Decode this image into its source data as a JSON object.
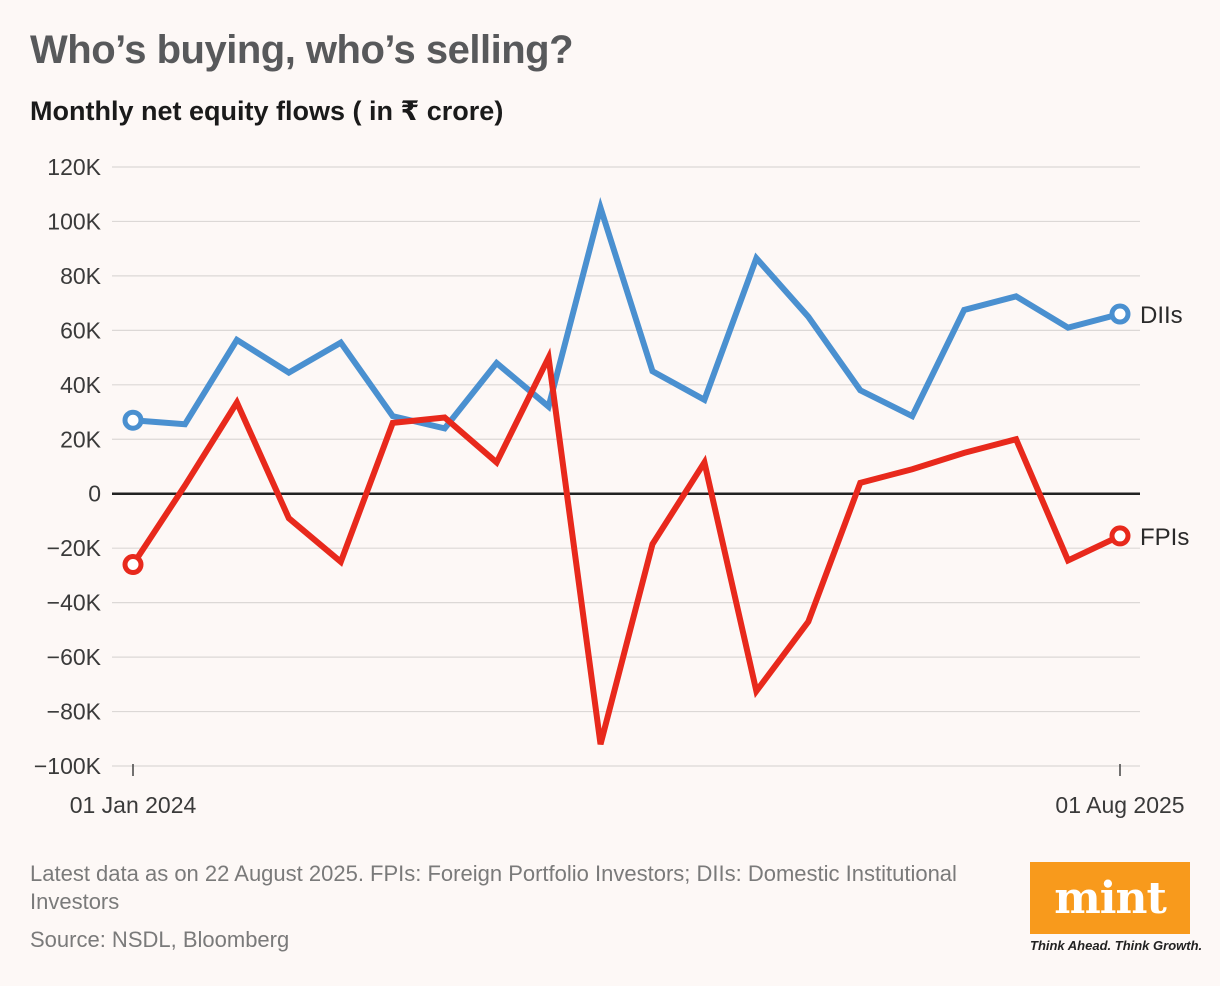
{
  "chart_data": {
    "type": "line",
    "title": "Who’s buying, who’s selling?",
    "subtitle": "Monthly net equity flows ( in ₹ crore)",
    "ylim": [
      -100000,
      120000
    ],
    "y_ticks": [
      120000,
      100000,
      80000,
      60000,
      40000,
      20000,
      0,
      -20000,
      -40000,
      -60000,
      -80000,
      -100000
    ],
    "y_tick_labels": [
      "120K",
      "100K",
      "80K",
      "60K",
      "40K",
      "20K",
      "0",
      "−20K",
      "−40K",
      "−60K",
      "−80K",
      "−100K"
    ],
    "x_tick_labels": [
      "01 Jan 2024",
      "01 Aug 2025"
    ],
    "x": [
      "2024-01",
      "2024-02",
      "2024-03",
      "2024-04",
      "2024-05",
      "2024-06",
      "2024-07",
      "2024-08",
      "2024-09",
      "2024-10",
      "2024-11",
      "2024-12",
      "2025-01",
      "2025-02",
      "2025-03",
      "2025-04",
      "2025-05",
      "2025-06",
      "2025-07",
      "2025-08"
    ],
    "series": [
      {
        "name": "DIIs",
        "color": "#4a90d0",
        "values": [
          27000,
          25500,
          56500,
          44500,
          55500,
          28500,
          24000,
          48000,
          32000,
          105000,
          45000,
          34500,
          86500,
          65000,
          38000,
          28500,
          67500,
          72500,
          61000,
          66000
        ]
      },
      {
        "name": "FPIs",
        "color": "#e8291c",
        "values": [
          -26000,
          3000,
          33500,
          -9000,
          -25000,
          26000,
          28000,
          11500,
          50000,
          -92000,
          -18500,
          11500,
          -72500,
          -47000,
          4000,
          9000,
          15000,
          20000,
          -24500,
          -15500
        ]
      }
    ],
    "grid": true,
    "legend": "end-of-line labels"
  },
  "footer": {
    "note": "Latest data as on 22 August 2025. FPIs: Foreign Portfolio Investors; DIIs: Domestic Institutional Investors",
    "source": "Source: NSDL, Bloomberg"
  },
  "brand": {
    "logo": "mint",
    "tagline": "Think Ahead. Think Growth.",
    "color": "#f89a1c"
  }
}
